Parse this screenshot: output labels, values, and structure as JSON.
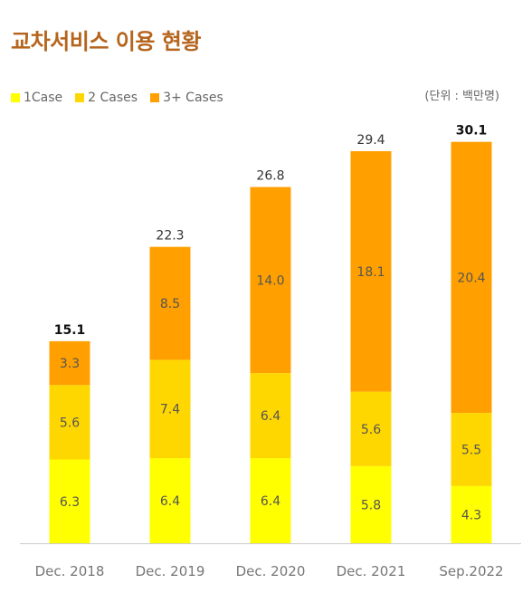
{
  "chart_data": {
    "type": "bar",
    "stacked": true,
    "title": "교차서비스 이용 현황",
    "unit_label": "(단위 : 백만명)",
    "categories": [
      "Dec. 2018",
      "Dec. 2019",
      "Dec. 2020",
      "Dec. 2021",
      "Sep.2022"
    ],
    "series": [
      {
        "name": "1Case",
        "color": "#ffff00",
        "values": [
          6.3,
          6.4,
          6.4,
          5.8,
          4.3
        ]
      },
      {
        "name": "2 Cases",
        "color": "#ffd700",
        "values": [
          5.6,
          7.4,
          6.4,
          5.6,
          5.5
        ]
      },
      {
        "name": "3+ Cases",
        "color": "#ffa000",
        "values": [
          3.3,
          8.5,
          14.0,
          18.1,
          20.4
        ]
      }
    ],
    "totals": [
      "15.1",
      "22.3",
      "26.8",
      "29.4",
      "30.1"
    ],
    "bold_totals": [
      true,
      false,
      false,
      false,
      true
    ],
    "legend_position": "top-left",
    "grid": false
  }
}
